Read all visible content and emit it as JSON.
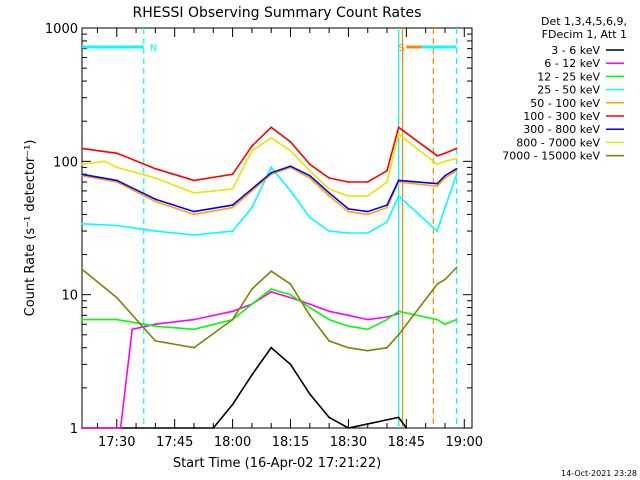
{
  "chart_data": {
    "type": "line",
    "title": "RHESSI Observing Summary Count Rates",
    "xlabel": "Start Time (16-Apr-02 17:21:22)",
    "ylabel": "Count Rate (s⁻¹ detector⁻¹)",
    "y_scale": "log",
    "ylim": [
      1,
      1000
    ],
    "xlim": [
      "17:21",
      "19:02"
    ],
    "x_ticks": [
      "17:30",
      "17:45",
      "18:00",
      "18:15",
      "18:30",
      "18:45",
      "19:00"
    ],
    "y_ticks": [
      "1",
      "10",
      "100",
      "1000"
    ],
    "legend_header": [
      "Det 1,3,4,5,6,9,",
      "FDecim 1, Att 1"
    ],
    "legend_position": "right",
    "series": [
      {
        "name": "3 - 6 keV",
        "color": "#000000",
        "x": [
          "17:21",
          "17:40",
          "17:50",
          "17:55",
          "18:00",
          "18:05",
          "18:10",
          "18:15",
          "18:20",
          "18:25",
          "18:30",
          "18:43",
          "18:45"
        ],
        "values": [
          1,
          1,
          1,
          1,
          1.5,
          2.5,
          4.0,
          3.0,
          1.8,
          1.2,
          1,
          1.2,
          1
        ]
      },
      {
        "name": "6 - 12 keV",
        "color": "#ff00ff",
        "x": [
          "17:21",
          "17:31",
          "17:34",
          "17:40",
          "17:50",
          "18:00",
          "18:05",
          "18:10",
          "18:15",
          "18:20",
          "18:25",
          "18:30",
          "18:35",
          "18:40",
          "18:43"
        ],
        "values": [
          1,
          1,
          5.5,
          6.0,
          6.5,
          7.5,
          8.5,
          10.5,
          9.5,
          8.5,
          7.5,
          7.0,
          6.5,
          6.8,
          7.2
        ]
      },
      {
        "name": "12 - 25 keV",
        "color": "#00ff00",
        "x": [
          "17:21",
          "17:30",
          "17:40",
          "17:50",
          "18:00",
          "18:05",
          "18:10",
          "18:15",
          "18:20",
          "18:25",
          "18:30",
          "18:35",
          "18:40",
          "18:43",
          "18:53",
          "18:55",
          "18:58"
        ],
        "values": [
          6.5,
          6.5,
          5.8,
          5.5,
          6.5,
          8.5,
          11,
          10,
          8,
          6.5,
          5.8,
          5.5,
          6.5,
          7.5,
          6.5,
          6.0,
          6.5
        ]
      },
      {
        "name": "25 - 50 keV",
        "color": "#00ffff",
        "x": [
          "17:21",
          "17:30",
          "17:40",
          "17:50",
          "18:00",
          "18:05",
          "18:10",
          "18:15",
          "18:20",
          "18:25",
          "18:30",
          "18:35",
          "18:40",
          "18:43",
          "18:53",
          "18:55",
          "18:58"
        ],
        "values": [
          34,
          33,
          30,
          28,
          30,
          45,
          90,
          60,
          38,
          30,
          29,
          29,
          35,
          55,
          30,
          45,
          80
        ]
      },
      {
        "name": "50 - 100 keV",
        "color": "#ffa500",
        "x": [
          "17:21",
          "17:30",
          "17:40",
          "17:50",
          "18:00",
          "18:10",
          "18:15",
          "18:20",
          "18:25",
          "18:30",
          "18:35",
          "18:40",
          "18:43",
          "18:53",
          "18:55",
          "18:58"
        ],
        "values": [
          78,
          70,
          50,
          40,
          45,
          80,
          90,
          75,
          55,
          42,
          40,
          45,
          70,
          65,
          75,
          85
        ]
      },
      {
        "name": "100 - 300 keV",
        "color": "#ff0000",
        "x": [
          "17:21",
          "17:27",
          "17:30",
          "17:40",
          "17:50",
          "18:00",
          "18:05",
          "18:10",
          "18:15",
          "18:20",
          "18:25",
          "18:30",
          "18:35",
          "18:40",
          "18:43",
          "18:53",
          "18:55",
          "18:58"
        ],
        "values": [
          125,
          118,
          115,
          88,
          72,
          80,
          130,
          180,
          140,
          95,
          75,
          70,
          70,
          85,
          180,
          110,
          115,
          125
        ]
      },
      {
        "name": "300 - 800 keV",
        "color": "#0000ff",
        "x": [
          "17:21",
          "17:30",
          "17:40",
          "17:50",
          "18:00",
          "18:10",
          "18:15",
          "18:20",
          "18:25",
          "18:30",
          "18:35",
          "18:40",
          "18:43",
          "18:53",
          "18:55",
          "18:58"
        ],
        "values": [
          80,
          72,
          52,
          42,
          47,
          82,
          92,
          78,
          58,
          44,
          42,
          47,
          72,
          68,
          78,
          88
        ]
      },
      {
        "name": "800 - 7000 keV",
        "color": "#e6e600",
        "x": [
          "17:21",
          "17:27",
          "17:30",
          "17:40",
          "17:50",
          "18:00",
          "18:05",
          "18:10",
          "18:15",
          "18:20",
          "18:25",
          "18:30",
          "18:35",
          "18:40",
          "18:43",
          "18:53",
          "18:55",
          "18:58"
        ],
        "values": [
          95,
          100,
          90,
          75,
          58,
          62,
          120,
          150,
          120,
          85,
          62,
          55,
          55,
          70,
          160,
          95,
          100,
          105
        ]
      },
      {
        "name": "7000 - 15000 keV",
        "color": "#808000",
        "x": [
          "17:21",
          "17:30",
          "17:40",
          "17:50",
          "18:00",
          "18:05",
          "18:10",
          "18:15",
          "18:20",
          "18:25",
          "18:30",
          "18:35",
          "18:40",
          "18:43",
          "18:53",
          "18:55",
          "18:58"
        ],
        "values": [
          15.5,
          9.5,
          4.5,
          4.0,
          6.5,
          11,
          15,
          12,
          7,
          4.5,
          4.0,
          3.8,
          4.0,
          5.0,
          12,
          13,
          16
        ]
      }
    ],
    "markers": [
      {
        "label": "N",
        "color": "#00ffff",
        "x_start": "17:21",
        "x_end": "17:37"
      },
      {
        "label": "S",
        "color": "#ff8800",
        "x_start": "18:45",
        "x_end": "18:49"
      }
    ],
    "bars": [
      {
        "color": "#00ffff",
        "x_start": "18:49",
        "x_end": "18:58"
      }
    ],
    "vlines": [
      {
        "x": "17:37",
        "color": "#00ffff",
        "style": "dashed"
      },
      {
        "x": "18:43",
        "color": "#00ffff",
        "style": "solid"
      },
      {
        "x": "18:44",
        "color": "#ff8800",
        "style": "solid"
      },
      {
        "x": "18:52",
        "color": "#ff8800",
        "style": "dashed"
      },
      {
        "x": "18:58",
        "color": "#00ffff",
        "style": "dashed"
      }
    ],
    "footer": "14-Oct-2021 23:28"
  },
  "colors": {
    "background": "#ffffff",
    "axis": "#000000"
  }
}
